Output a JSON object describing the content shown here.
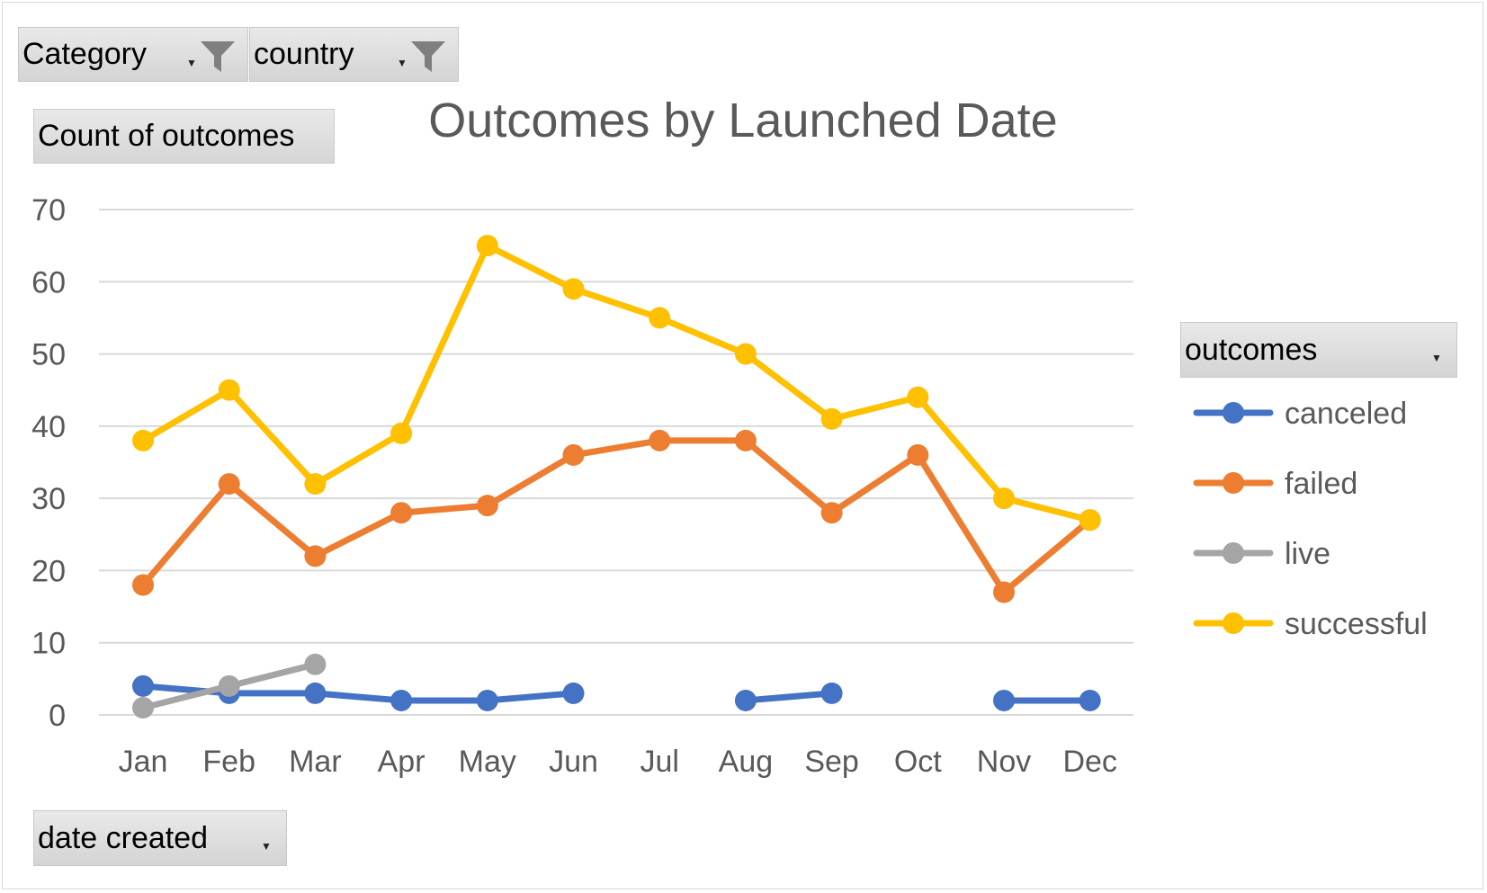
{
  "filters": {
    "category_label": "Category",
    "country_label": "country",
    "values_label": "Count of outcomes",
    "axis_field_label": "date created",
    "legend_field_label": "outcomes"
  },
  "colors": {
    "canceled": "#4472C4",
    "failed": "#ED7D31",
    "live": "#A5A5A5",
    "successful": "#FFC000",
    "gridline": "#d9d9d9",
    "text": "#595959"
  },
  "chart_data": {
    "type": "line",
    "title": "Outcomes by Launched Date",
    "xlabel": "",
    "ylabel": "",
    "categories": [
      "Jan",
      "Feb",
      "Mar",
      "Apr",
      "May",
      "Jun",
      "Jul",
      "Aug",
      "Sep",
      "Oct",
      "Nov",
      "Dec"
    ],
    "ylim": [
      0,
      70
    ],
    "yticks": [
      "0",
      "10",
      "20",
      "30",
      "40",
      "50",
      "60",
      "70"
    ],
    "grid": true,
    "legend_position": "right",
    "series": [
      {
        "name": "canceled",
        "values": [
          4,
          3,
          3,
          2,
          2,
          3,
          null,
          2,
          3,
          null,
          2,
          2
        ]
      },
      {
        "name": "failed",
        "values": [
          18,
          32,
          22,
          28,
          29,
          36,
          38,
          38,
          28,
          36,
          17,
          27
        ]
      },
      {
        "name": "live",
        "values": [
          1,
          4,
          7,
          null,
          null,
          null,
          null,
          null,
          null,
          null,
          null,
          null
        ]
      },
      {
        "name": "successful",
        "values": [
          38,
          45,
          32,
          39,
          65,
          59,
          55,
          50,
          41,
          44,
          30,
          27
        ]
      }
    ]
  }
}
